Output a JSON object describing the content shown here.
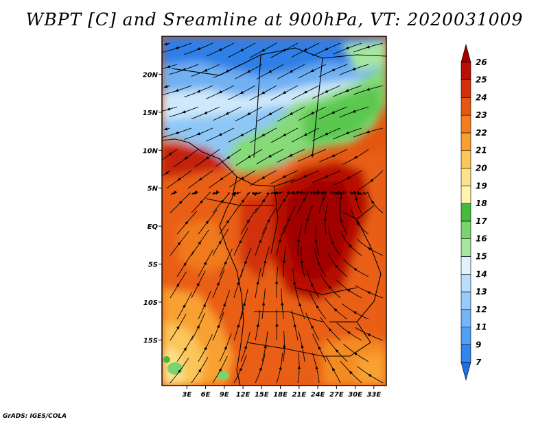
{
  "title": "WBPT [C] and Sreamline at 900hPa, VT: 2020031009",
  "credit": "GrADS: IGES/COLA",
  "map": {
    "lon_range": [
      -1,
      35
    ],
    "lat_range": [
      -21,
      25
    ],
    "x_ticks": [
      "3E",
      "6E",
      "9E",
      "12E",
      "15E",
      "18E",
      "21E",
      "24E",
      "27E",
      "30E",
      "33E"
    ],
    "x_tick_values": [
      3,
      6,
      9,
      12,
      15,
      18,
      21,
      24,
      27,
      30,
      33
    ],
    "y_ticks": [
      "20N",
      "15N",
      "10N",
      "5N",
      "EQ",
      "5S",
      "10S",
      "15S"
    ],
    "y_tick_values": [
      20,
      15,
      10,
      5,
      0,
      -5,
      -10,
      -15
    ],
    "field": "wet-bulb potential temperature",
    "overlay": "streamlines"
  },
  "colorbar": {
    "labels": [
      "7",
      "9",
      "11",
      "12",
      "13",
      "14",
      "15",
      "16",
      "17",
      "18",
      "19",
      "20",
      "21",
      "22",
      "23",
      "24",
      "25",
      "26"
    ],
    "colors": [
      "#1e6ee6",
      "#2f86f0",
      "#4fa0f5",
      "#73b6f8",
      "#96cbfa",
      "#b9defb",
      "#e1f2fd",
      "#a6e6a0",
      "#78d46e",
      "#43bc3e",
      "#fff3b0",
      "#fde28a",
      "#fbc65a",
      "#f9a031",
      "#f27f1c",
      "#e45812",
      "#d1300b",
      "#b81006",
      "#a00000"
    ]
  }
}
